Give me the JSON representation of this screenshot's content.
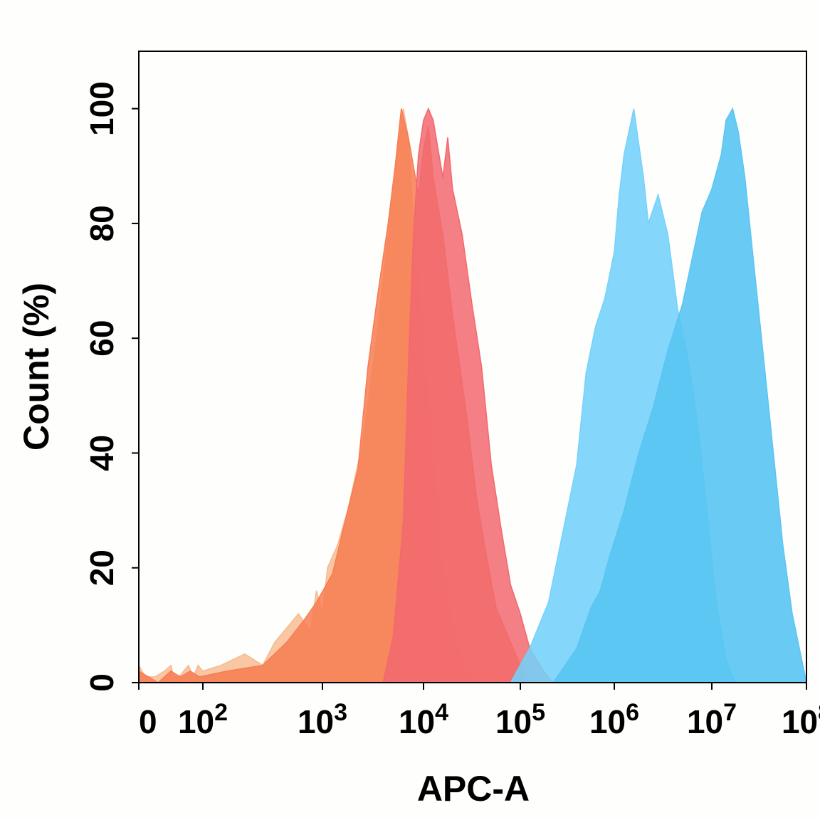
{
  "chart_data": {
    "type": "area",
    "title": "",
    "xlabel": "APC-A",
    "ylabel": "Count  (%)",
    "xscale": "log",
    "xlim": [
      0,
      100000000
    ],
    "ylim": [
      0,
      110
    ],
    "grid": false,
    "legend": "none",
    "x_ticks": [
      {
        "value": 0,
        "base": "0",
        "exp": ""
      },
      {
        "value": 100,
        "base": "10",
        "exp": "2"
      },
      {
        "value": 1000,
        "base": "10",
        "exp": "3"
      },
      {
        "value": 10000,
        "base": "10",
        "exp": "4"
      },
      {
        "value": 100000,
        "base": "10",
        "exp": "5"
      },
      {
        "value": 1000000,
        "base": "10",
        "exp": "6"
      },
      {
        "value": 10000000,
        "base": "10",
        "exp": "7"
      },
      {
        "value": 100000000,
        "base": "10",
        "exp": "8"
      }
    ],
    "y_ticks": [
      0,
      20,
      40,
      60,
      80,
      100
    ],
    "series": [
      {
        "name": "light-orange",
        "color": "#f7b98c",
        "opacity": 0.8,
        "points": [
          [
            0,
            3
          ],
          [
            0.2,
            1
          ],
          [
            0.5,
            1
          ],
          [
            0.8,
            2
          ],
          [
            1.0,
            3
          ],
          [
            1.1,
            1
          ],
          [
            1.25,
            1
          ],
          [
            1.4,
            2
          ],
          [
            1.55,
            3
          ],
          [
            1.7,
            1
          ],
          [
            1.85,
            3
          ],
          [
            2.0,
            2
          ],
          [
            2.15,
            3
          ],
          [
            2.35,
            5
          ],
          [
            2.5,
            3
          ],
          [
            2.6,
            7
          ],
          [
            2.8,
            12
          ],
          [
            2.9,
            9
          ],
          [
            2.95,
            16
          ],
          [
            3.0,
            12
          ],
          [
            3.05,
            20
          ],
          [
            3.15,
            24
          ],
          [
            3.25,
            30
          ],
          [
            3.4,
            42
          ],
          [
            3.55,
            62
          ],
          [
            3.65,
            78
          ],
          [
            3.75,
            93
          ],
          [
            3.8,
            100
          ],
          [
            3.85,
            95
          ],
          [
            3.9,
            80
          ],
          [
            3.95,
            70
          ],
          [
            4.0,
            60
          ],
          [
            4.05,
            50
          ],
          [
            4.1,
            40
          ],
          [
            4.15,
            30
          ],
          [
            4.2,
            20
          ],
          [
            4.3,
            10
          ],
          [
            4.4,
            4
          ],
          [
            4.5,
            0
          ]
        ]
      },
      {
        "name": "orange",
        "color": "#f77c52",
        "opacity": 0.85,
        "points": [
          [
            0,
            2
          ],
          [
            0.3,
            1
          ],
          [
            0.6,
            0
          ],
          [
            1.0,
            2
          ],
          [
            1.3,
            1
          ],
          [
            1.6,
            2
          ],
          [
            1.9,
            1
          ],
          [
            2.2,
            2
          ],
          [
            2.5,
            3
          ],
          [
            2.7,
            7
          ],
          [
            2.85,
            11
          ],
          [
            2.95,
            14
          ],
          [
            3.1,
            19
          ],
          [
            3.25,
            30
          ],
          [
            3.35,
            37
          ],
          [
            3.45,
            55
          ],
          [
            3.55,
            68
          ],
          [
            3.65,
            80
          ],
          [
            3.72,
            90
          ],
          [
            3.78,
            100
          ],
          [
            3.85,
            95
          ],
          [
            3.95,
            85
          ],
          [
            4.0,
            93
          ],
          [
            4.05,
            97
          ],
          [
            4.1,
            88
          ],
          [
            4.2,
            78
          ],
          [
            4.3,
            64
          ],
          [
            4.45,
            46
          ],
          [
            4.55,
            32
          ],
          [
            4.65,
            22
          ],
          [
            4.75,
            13
          ],
          [
            4.9,
            7
          ],
          [
            5.0,
            3
          ],
          [
            5.1,
            0
          ]
        ]
      },
      {
        "name": "red",
        "color": "#f26870",
        "opacity": 0.85,
        "points": [
          [
            3.6,
            0
          ],
          [
            3.7,
            8
          ],
          [
            3.8,
            28
          ],
          [
            3.85,
            55
          ],
          [
            3.9,
            78
          ],
          [
            3.95,
            92
          ],
          [
            4.0,
            98
          ],
          [
            4.05,
            100
          ],
          [
            4.1,
            98
          ],
          [
            4.15,
            93
          ],
          [
            4.2,
            88
          ],
          [
            4.25,
            95
          ],
          [
            4.3,
            86
          ],
          [
            4.4,
            78
          ],
          [
            4.5,
            66
          ],
          [
            4.6,
            55
          ],
          [
            4.7,
            38
          ],
          [
            4.8,
            27
          ],
          [
            4.9,
            17
          ],
          [
            5.0,
            12
          ],
          [
            5.1,
            6
          ],
          [
            5.25,
            2
          ],
          [
            5.35,
            0
          ]
        ]
      },
      {
        "name": "blue",
        "color": "#73d2fa",
        "opacity": 0.88,
        "points": [
          [
            4.9,
            0
          ],
          [
            5.1,
            6
          ],
          [
            5.3,
            14
          ],
          [
            5.45,
            26
          ],
          [
            5.6,
            38
          ],
          [
            5.7,
            54
          ],
          [
            5.8,
            62
          ],
          [
            5.9,
            67
          ],
          [
            6.0,
            75
          ],
          [
            6.05,
            85
          ],
          [
            6.1,
            92
          ],
          [
            6.2,
            100
          ],
          [
            6.3,
            88
          ],
          [
            6.35,
            80
          ],
          [
            6.45,
            85
          ],
          [
            6.55,
            78
          ],
          [
            6.65,
            65
          ],
          [
            6.75,
            57
          ],
          [
            6.85,
            46
          ],
          [
            6.95,
            30
          ],
          [
            7.05,
            14
          ],
          [
            7.15,
            4
          ],
          [
            7.25,
            0
          ]
        ]
      },
      {
        "name": "cyan",
        "color": "#59c5f3",
        "opacity": 0.9,
        "points": [
          [
            5.35,
            0
          ],
          [
            5.6,
            6
          ],
          [
            5.75,
            13
          ],
          [
            5.85,
            16
          ],
          [
            5.95,
            22
          ],
          [
            6.1,
            30
          ],
          [
            6.25,
            40
          ],
          [
            6.4,
            48
          ],
          [
            6.55,
            58
          ],
          [
            6.7,
            66
          ],
          [
            6.8,
            74
          ],
          [
            6.9,
            82
          ],
          [
            7.0,
            86
          ],
          [
            7.1,
            92
          ],
          [
            7.15,
            98
          ],
          [
            7.22,
            100
          ],
          [
            7.28,
            96
          ],
          [
            7.35,
            88
          ],
          [
            7.45,
            72
          ],
          [
            7.55,
            56
          ],
          [
            7.65,
            40
          ],
          [
            7.75,
            24
          ],
          [
            7.85,
            12
          ],
          [
            7.95,
            4
          ],
          [
            8.05,
            0
          ]
        ]
      }
    ]
  }
}
